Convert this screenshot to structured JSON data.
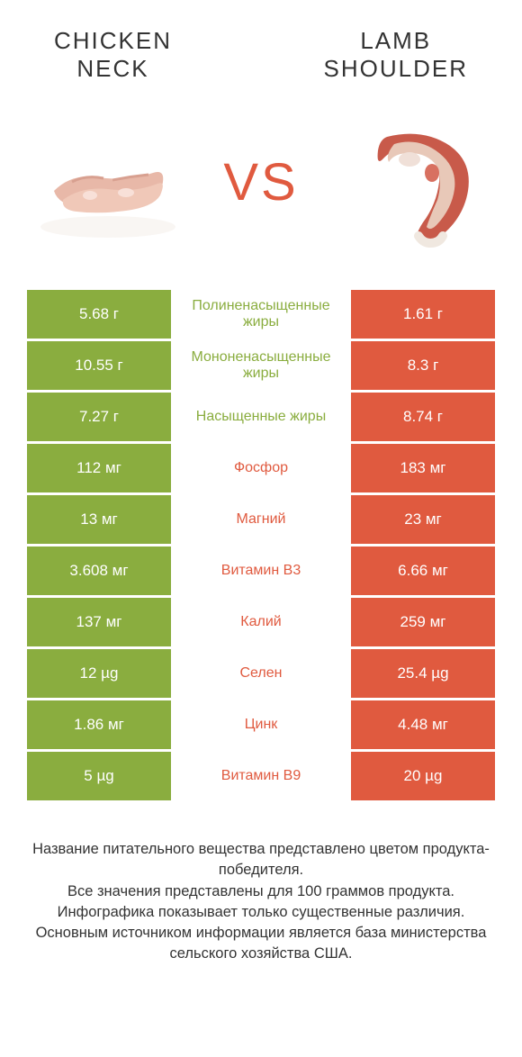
{
  "colors": {
    "green": "#8aad3f",
    "orange": "#e05a3f",
    "text": "#333333",
    "background": "#ffffff"
  },
  "typography": {
    "header_fontsize": 26,
    "vs_fontsize": 58,
    "cell_fontsize": 17,
    "footer_fontsize": 16.5
  },
  "header": {
    "left_line1": "CHICKEN",
    "left_line2": "NECK",
    "right_line1": "LAMB",
    "right_line2": "SHOULDER",
    "vs": "VS"
  },
  "table": {
    "rows": [
      {
        "left": "5.68 г",
        "mid": "Полиненасыщенные жиры",
        "right": "1.61 г",
        "winner": "left"
      },
      {
        "left": "10.55 г",
        "mid": "Мононенасыщенные жиры",
        "right": "8.3 г",
        "winner": "left"
      },
      {
        "left": "7.27 г",
        "mid": "Насыщенные жиры",
        "right": "8.74 г",
        "winner": "left"
      },
      {
        "left": "112 мг",
        "mid": "Фосфор",
        "right": "183 мг",
        "winner": "right"
      },
      {
        "left": "13 мг",
        "mid": "Магний",
        "right": "23 мг",
        "winner": "right"
      },
      {
        "left": "3.608 мг",
        "mid": "Витамин B3",
        "right": "6.66 мг",
        "winner": "right"
      },
      {
        "left": "137 мг",
        "mid": "Калий",
        "right": "259 мг",
        "winner": "right"
      },
      {
        "left": "12 µg",
        "mid": "Селен",
        "right": "25.4 µg",
        "winner": "right"
      },
      {
        "left": "1.86 мг",
        "mid": "Цинк",
        "right": "4.48 мг",
        "winner": "right"
      },
      {
        "left": "5 µg",
        "mid": "Витамин B9",
        "right": "20 µg",
        "winner": "right"
      }
    ]
  },
  "footer": {
    "line1": "Название питательного вещества представлено цветом продукта-победителя.",
    "line2": "Все значения представлены для 100 граммов продукта.",
    "line3": "Инфографика показывает только существенные различия.",
    "line4": "Основным источником информации является база министерства сельского хозяйства США."
  }
}
